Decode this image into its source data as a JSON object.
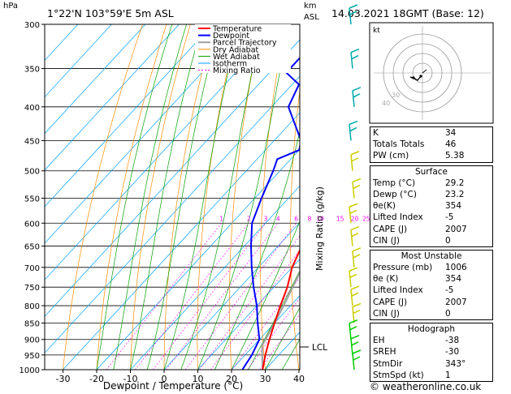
{
  "header": {
    "unit_left": "hPa",
    "location": "1°22'N 103°59'E 5m ASL",
    "unit_right_1": "km",
    "unit_right_2": "ASL",
    "datetime": "14.03.2021 18GMT (Base: 12)"
  },
  "footer": {
    "credit": "© weatheronline.co.uk"
  },
  "colors": {
    "temperature": "#ff0000",
    "dewpoint": "#0000ff",
    "parcel": "#a0a0a0",
    "dry_adiabat": "#ff8c00",
    "wet_adiabat": "#00a000",
    "isotherm": "#00a0ff",
    "mixing_ratio": "#ff00ff",
    "wind_barb": "#00cc00"
  },
  "chart_data": {
    "type": "skew-t",
    "xlabel": "Dewpoint / Temperature (°C)",
    "ylabel_right": "Mixing Ratio (g/kg)",
    "pressure_levels": [
      300,
      350,
      400,
      450,
      500,
      550,
      600,
      650,
      700,
      750,
      800,
      850,
      900,
      950,
      1000
    ],
    "temperature_ticks": [
      -30,
      -20,
      -10,
      0,
      10,
      20,
      30,
      40
    ],
    "mixing_ratio_labels": [
      "1",
      "2",
      "3",
      "4",
      "6",
      "8",
      "10",
      "15",
      "20",
      "25"
    ],
    "legend": [
      "Temperature",
      "Dewpoint",
      "Parcel Trajectory",
      "Dry Adiabat",
      "Wet Adiabat",
      "Isotherm",
      "Mixing Ratio"
    ],
    "lcl_label": "LCL",
    "lcl_pressure": 920,
    "temperature_profile": [
      {
        "p": 1000,
        "t": 29.2
      },
      {
        "p": 950,
        "t": 26
      },
      {
        "p": 900,
        "t": 23
      },
      {
        "p": 850,
        "t": 20
      },
      {
        "p": 800,
        "t": 17
      },
      {
        "p": 750,
        "t": 14
      },
      {
        "p": 700,
        "t": 10
      },
      {
        "p": 650,
        "t": 7
      },
      {
        "p": 600,
        "t": 3
      },
      {
        "p": 550,
        "t": -1
      },
      {
        "p": 500,
        "t": -6
      },
      {
        "p": 450,
        "t": -11
      },
      {
        "p": 400,
        "t": -17
      },
      {
        "p": 350,
        "t": -25
      },
      {
        "p": 300,
        "t": -33
      }
    ],
    "dewpoint_profile": [
      {
        "p": 1000,
        "t": 23.2
      },
      {
        "p": 950,
        "t": 22
      },
      {
        "p": 900,
        "t": 20
      },
      {
        "p": 850,
        "t": 15
      },
      {
        "p": 800,
        "t": 10
      },
      {
        "p": 750,
        "t": 4
      },
      {
        "p": 700,
        "t": -2
      },
      {
        "p": 650,
        "t": -8
      },
      {
        "p": 600,
        "t": -14
      },
      {
        "p": 550,
        "t": -18
      },
      {
        "p": 500,
        "t": -22
      },
      {
        "p": 480,
        "t": -24
      },
      {
        "p": 465,
        "t": -20
      },
      {
        "p": 450,
        "t": -22
      },
      {
        "p": 400,
        "t": -35
      },
      {
        "p": 370,
        "t": -38
      },
      {
        "p": 355,
        "t": -45
      },
      {
        "p": 330,
        "t": -45
      },
      {
        "p": 310,
        "t": -42
      },
      {
        "p": 300,
        "t": -40
      }
    ],
    "parcel_profile": [
      {
        "p": 1000,
        "t": 29.2
      },
      {
        "p": 920,
        "t": 22.5
      },
      {
        "p": 850,
        "t": 20
      },
      {
        "p": 800,
        "t": 18
      },
      {
        "p": 700,
        "t": 13
      },
      {
        "p": 600,
        "t": 6.5
      },
      {
        "p": 500,
        "t": -2
      },
      {
        "p": 400,
        "t": -13
      },
      {
        "p": 300,
        "t": -30
      }
    ],
    "hodograph": {
      "rings": [
        "40",
        "30"
      ],
      "label": "kt"
    }
  },
  "indices": {
    "top": [
      {
        "label": "K",
        "value": "34"
      },
      {
        "label": "Totals Totals",
        "value": "46"
      },
      {
        "label": "PW (cm)",
        "value": "5.38"
      }
    ],
    "surface": {
      "title": "Surface",
      "rows": [
        {
          "label": "Temp (°C)",
          "value": "29.2"
        },
        {
          "label": "Dewp (°C)",
          "value": "23.2"
        },
        {
          "label": "θe(K)",
          "value": "354"
        },
        {
          "label": "Lifted Index",
          "value": "-5"
        },
        {
          "label": "CAPE (J)",
          "value": "2007"
        },
        {
          "label": "CIN (J)",
          "value": "0"
        }
      ]
    },
    "most_unstable": {
      "title": "Most Unstable",
      "rows": [
        {
          "label": "Pressure (mb)",
          "value": "1006"
        },
        {
          "label": "θe (K)",
          "value": "354"
        },
        {
          "label": "Lifted Index",
          "value": "-5"
        },
        {
          "label": "CAPE (J)",
          "value": "2007"
        },
        {
          "label": "CIN (J)",
          "value": "0"
        }
      ]
    },
    "hodograph": {
      "title": "Hodograph",
      "rows": [
        {
          "label": "EH",
          "value": "-38"
        },
        {
          "label": "SREH",
          "value": "-30"
        },
        {
          "label": "StmDir",
          "value": "343°"
        },
        {
          "label": "StmSpd (kt)",
          "value": "1"
        }
      ]
    }
  }
}
